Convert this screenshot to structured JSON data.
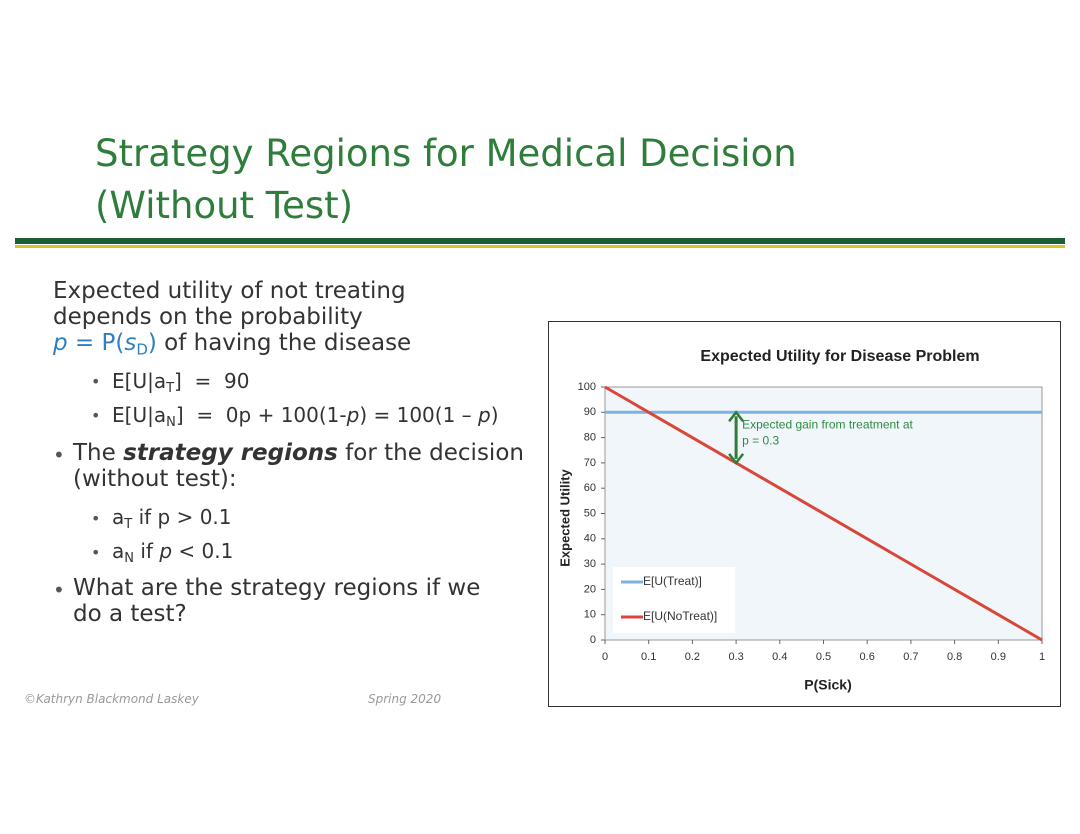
{
  "title": [
    "Strategy Regions for Medical Decision",
    "(Without Test)"
  ],
  "intro": {
    "line1": "Expected utility of not treating",
    "line2": "depends on the probability",
    "line3": [
      "p",
      " = P(",
      "s",
      "D",
      ")",
      " of having the disease"
    ]
  },
  "sub1": [
    "E[U|a",
    "T",
    "]  =  90"
  ],
  "sub2": [
    "E[U|a",
    "N",
    "]  =  0p + 100(1-",
    "p",
    ") = 100(1 – ",
    "p",
    ")"
  ],
  "bullet2": {
    "line1": [
      "The ",
      "strategy regions",
      " for the decision"
    ],
    "line2": "(without test):"
  },
  "sub3": [
    "a",
    "T",
    " if p > 0.1"
  ],
  "sub4": [
    "a",
    "N",
    " if ",
    "p",
    " < 0.1"
  ],
  "bullet3": [
    "What are the strategy regions if we",
    "do a test?"
  ],
  "footer": {
    "author": "©Kathryn Blackmond Laskey",
    "term": "Spring 2020"
  },
  "chart_data": {
    "type": "line",
    "title": "Expected Utility for Disease Problem",
    "x_label": "P(Sick)",
    "y_label": "Expected Utility",
    "x": [
      0,
      1
    ],
    "series": [
      {
        "name": "E[U(Treat)]",
        "color": "#7fb2e0",
        "values": [
          90,
          90
        ]
      },
      {
        "name": "E[U(NoTreat)]",
        "color": "#d9473b",
        "values": [
          100,
          0
        ]
      }
    ],
    "xlim": [
      0,
      1
    ],
    "xticks": [
      0,
      0.1,
      0.2,
      0.3,
      0.4,
      0.5,
      0.6,
      0.7,
      0.8,
      0.9,
      1
    ],
    "ylim": [
      0,
      100
    ],
    "yticks": [
      0,
      10,
      20,
      30,
      40,
      50,
      60,
      70,
      80,
      90,
      100
    ],
    "legend": "lower left",
    "annotation": {
      "lines": [
        "Expected gain from treatment at",
        "p = 0.3"
      ],
      "x": 0.3,
      "y": [
        70,
        90
      ],
      "color": "#2e8b40"
    }
  }
}
